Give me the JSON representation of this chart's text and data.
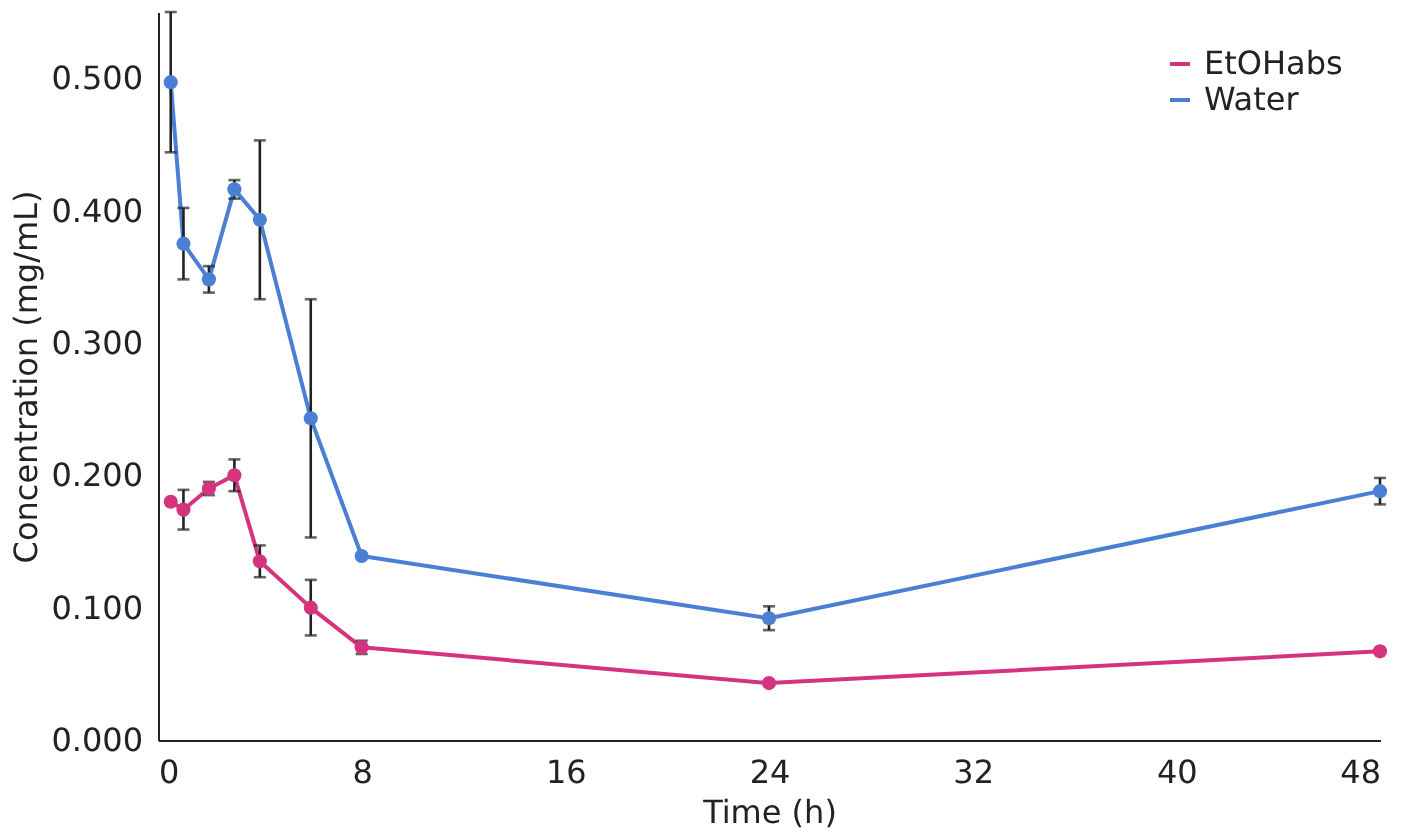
{
  "chart_data": {
    "type": "line",
    "xlabel": "Time (h)",
    "ylabel": "Concentration (mg/mL)",
    "x": [
      0.5,
      1,
      2,
      3,
      4,
      6,
      8,
      24,
      48
    ],
    "series": [
      {
        "name": "EtOHabs",
        "color": "#d6337f",
        "values": [
          0.18,
          0.174,
          0.19,
          0.2,
          0.135,
          0.1,
          0.07,
          0.043,
          0.067
        ],
        "errors": [
          null,
          0.015,
          0.005,
          0.012,
          0.012,
          0.021,
          0.005,
          null,
          null
        ]
      },
      {
        "name": "Water",
        "color": "#4a7fd4",
        "values": [
          0.497,
          0.375,
          0.348,
          0.416,
          0.393,
          0.243,
          0.139,
          0.092,
          0.188
        ],
        "errors": [
          0.053,
          0.027,
          0.01,
          0.007,
          0.06,
          0.09,
          null,
          0.009,
          0.01
        ]
      }
    ],
    "xlim": [
      0,
      48
    ],
    "xticks": [
      0,
      8,
      16,
      24,
      32,
      40,
      48
    ],
    "ylim": [
      0,
      0.55
    ],
    "yticks": [
      {
        "value": 0,
        "label": "0.000"
      },
      {
        "value": 0.1,
        "label": "0.100"
      },
      {
        "value": 0.2,
        "label": "0.200"
      },
      {
        "value": 0.3,
        "label": "0.300"
      },
      {
        "value": 0.4,
        "label": "0.400"
      },
      {
        "value": 0.5,
        "label": "0.500"
      }
    ],
    "grid": false,
    "legend": "top right",
    "marker": "circle",
    "line_style": "solid"
  }
}
